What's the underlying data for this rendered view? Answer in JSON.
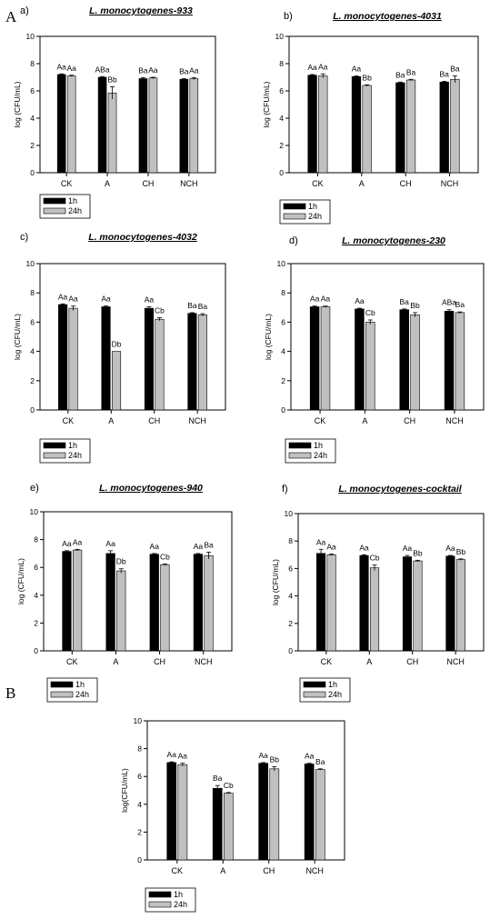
{
  "figure": {
    "panel_letters": [
      "A",
      "B"
    ],
    "legend": {
      "items": [
        "1h",
        "24h"
      ]
    },
    "colors": {
      "h1": "#000000",
      "h24": "#c0c0c0"
    }
  },
  "chart_data": [
    {
      "type": "bar",
      "letter": "a)",
      "title": "L. monocytogenes-933",
      "ylabel": "log (CFU/mL)",
      "categories": [
        "CK",
        "A",
        "CH",
        "NCH"
      ],
      "ylim": [
        0,
        10
      ],
      "yticks": [
        0,
        2,
        4,
        6,
        8,
        10
      ],
      "series": [
        {
          "name": "1h",
          "values": [
            7.2,
            7.0,
            6.9,
            6.85
          ],
          "errors": [
            0.05,
            0.05,
            0.08,
            0.05
          ],
          "labels": [
            "Aa",
            "ABa",
            "Ba",
            "Ba"
          ]
        },
        {
          "name": "24h",
          "values": [
            7.1,
            5.85,
            6.95,
            6.9
          ],
          "errors": [
            0.05,
            0.45,
            0.05,
            0.08
          ],
          "labels": [
            "Aa",
            "Bb",
            "Aa",
            "Aa"
          ]
        }
      ]
    },
    {
      "type": "bar",
      "letter": "b)",
      "title": "L. monocytogenes-4031",
      "ylabel": "log (CFU/mL)",
      "categories": [
        "CK",
        "A",
        "CH",
        "NCH"
      ],
      "ylim": [
        0,
        10
      ],
      "yticks": [
        0,
        2,
        4,
        6,
        8,
        10
      ],
      "series": [
        {
          "name": "1h",
          "values": [
            7.15,
            7.05,
            6.6,
            6.65
          ],
          "errors": [
            0.05,
            0.05,
            0.05,
            0.05
          ],
          "labels": [
            "Aa",
            "Aa",
            "Ba",
            "Ba"
          ]
        },
        {
          "name": "24h",
          "values": [
            7.1,
            6.4,
            6.8,
            6.85
          ],
          "errors": [
            0.15,
            0.05,
            0.05,
            0.25
          ],
          "labels": [
            "Aa",
            "Bb",
            "Ba",
            "Ba"
          ]
        }
      ]
    },
    {
      "type": "bar",
      "letter": "c)",
      "title": "L. monocytogenes-4032",
      "ylabel": "log (CFU/mL)",
      "categories": [
        "CK",
        "A",
        "CH",
        "NCH"
      ],
      "ylim": [
        0,
        10
      ],
      "yticks": [
        0,
        2,
        4,
        6,
        8,
        10
      ],
      "series": [
        {
          "name": "1h",
          "values": [
            7.2,
            7.05,
            6.95,
            6.6
          ],
          "errors": [
            0.05,
            0.05,
            0.1,
            0.05
          ],
          "labels": [
            "Aa",
            "Aa",
            "Aa",
            "Ba"
          ]
        },
        {
          "name": "24h",
          "values": [
            6.95,
            4.0,
            6.2,
            6.5
          ],
          "errors": [
            0.15,
            0.0,
            0.1,
            0.08
          ],
          "labels": [
            "Aa",
            "Db",
            "Cb",
            "Ba"
          ]
        }
      ]
    },
    {
      "type": "bar",
      "letter": "d)",
      "title": "L. monocytogenes-230",
      "ylabel": "log (CFU/mL)",
      "categories": [
        "CK",
        "A",
        "CH",
        "NCH"
      ],
      "ylim": [
        0,
        10
      ],
      "yticks": [
        0,
        2,
        4,
        6,
        8,
        10
      ],
      "series": [
        {
          "name": "1h",
          "values": [
            7.05,
            6.9,
            6.85,
            6.75
          ],
          "errors": [
            0.05,
            0.05,
            0.05,
            0.1
          ],
          "labels": [
            "Aa",
            "Aa",
            "Ba",
            "ABa"
          ]
        },
        {
          "name": "24h",
          "values": [
            7.05,
            6.0,
            6.5,
            6.65
          ],
          "errors": [
            0.05,
            0.15,
            0.15,
            0.05
          ],
          "labels": [
            "Aa",
            "Cb",
            "Bb",
            "Ba"
          ]
        }
      ]
    },
    {
      "type": "bar",
      "letter": "e)",
      "title": "L. monocytogenes-940",
      "ylabel": "log (CFU/mL)",
      "categories": [
        "CK",
        "A",
        "CH",
        "NCH"
      ],
      "ylim": [
        0,
        10
      ],
      "yticks": [
        0,
        2,
        4,
        6,
        8,
        10
      ],
      "series": [
        {
          "name": "1h",
          "values": [
            7.15,
            7.0,
            6.95,
            6.95
          ],
          "errors": [
            0.05,
            0.2,
            0.05,
            0.05
          ],
          "labels": [
            "Aa",
            "Aa",
            "Aa",
            "Aa"
          ]
        },
        {
          "name": "24h",
          "values": [
            7.25,
            5.75,
            6.2,
            6.85
          ],
          "errors": [
            0.05,
            0.15,
            0.05,
            0.25
          ],
          "labels": [
            "Aa",
            "Db",
            "Cb",
            "Ba"
          ]
        }
      ]
    },
    {
      "type": "bar",
      "letter": "f)",
      "title": "L. monocytogenes-cocktail",
      "ylabel": "log (CFU/mL)",
      "categories": [
        "CK",
        "A",
        "CH",
        "NCH"
      ],
      "ylim": [
        0,
        10
      ],
      "yticks": [
        0,
        2,
        4,
        6,
        8,
        10
      ],
      "series": [
        {
          "name": "1h",
          "values": [
            7.1,
            6.95,
            6.85,
            6.9
          ],
          "errors": [
            0.3,
            0.05,
            0.1,
            0.05
          ],
          "labels": [
            "Aa",
            "Aa",
            "Aa",
            "Aa"
          ]
        },
        {
          "name": "24h",
          "values": [
            7.0,
            6.05,
            6.55,
            6.65
          ],
          "errors": [
            0.05,
            0.2,
            0.05,
            0.05
          ],
          "labels": [
            "Aa",
            "Cb",
            "Bb",
            "Bb"
          ]
        }
      ]
    },
    {
      "type": "bar",
      "letter": "",
      "title": "",
      "ylabel": "log(CFU/mL)",
      "categories": [
        "CK",
        "A",
        "CH",
        "NCH"
      ],
      "ylim": [
        0,
        10
      ],
      "yticks": [
        0,
        2,
        4,
        6,
        8,
        10
      ],
      "series": [
        {
          "name": "1h",
          "values": [
            7.0,
            5.15,
            6.95,
            6.9
          ],
          "errors": [
            0.05,
            0.2,
            0.05,
            0.05
          ],
          "labels": [
            "Aa",
            "Ba",
            "Aa",
            "Aa"
          ]
        },
        {
          "name": "24h",
          "values": [
            6.85,
            4.8,
            6.55,
            6.5
          ],
          "errors": [
            0.1,
            0.05,
            0.15,
            0.05
          ],
          "labels": [
            "Aa",
            "Cb",
            "Bb",
            "Ba"
          ]
        }
      ]
    }
  ]
}
